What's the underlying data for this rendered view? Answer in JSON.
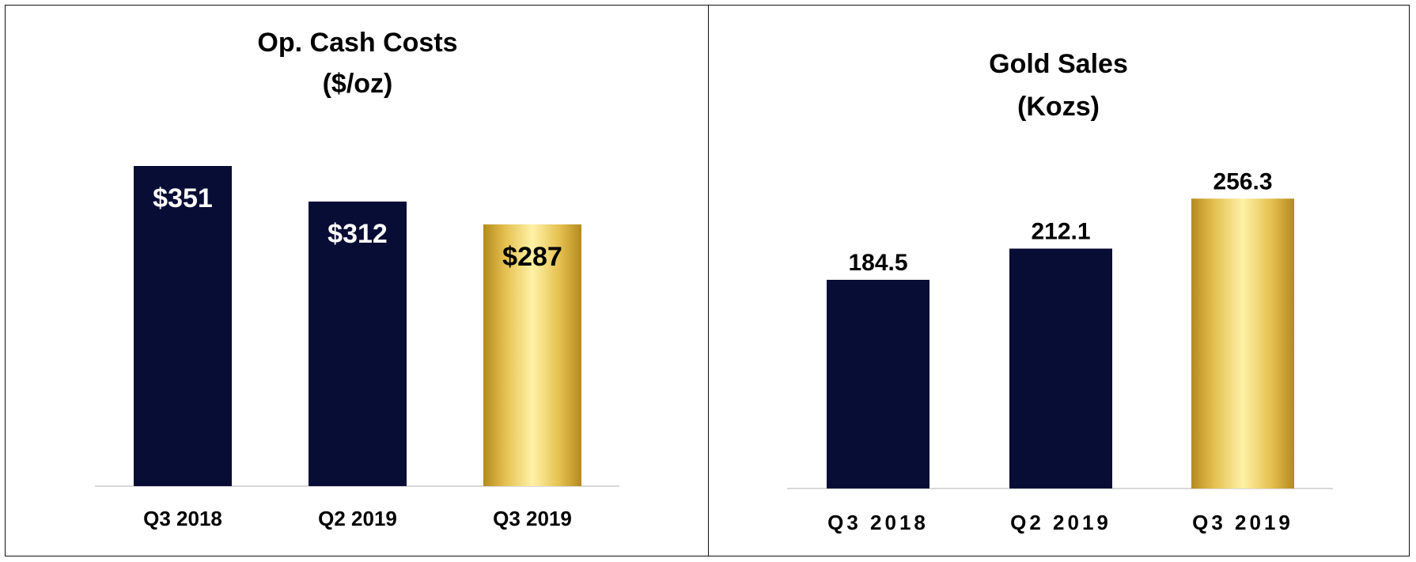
{
  "colors": {
    "navy": "#070d35",
    "gold_light": "#fff1a6",
    "gold_mid": "#e4c04f",
    "gold_dark": "#b38a1e",
    "baseline": "#d9d9d9"
  },
  "chart_data": [
    {
      "type": "bar",
      "title": [
        "Op. Cash Costs",
        "($/oz)"
      ],
      "categories": [
        "Q3 2018",
        "Q2 2019",
        "Q3 2019"
      ],
      "values": [
        351,
        312,
        287
      ],
      "data_labels": [
        "$351",
        "$312",
        "$287"
      ],
      "label_position": "inside",
      "bar_styles": [
        "navy",
        "navy",
        "gold"
      ],
      "ylim": [
        0,
        400
      ],
      "grid": false
    },
    {
      "type": "bar",
      "title": [
        "Gold Sales",
        "(Kozs)"
      ],
      "categories": [
        "Q3 2018",
        "Q2 2019",
        "Q3 2019"
      ],
      "values": [
        184.5,
        212.1,
        256.3
      ],
      "data_labels": [
        "184.5",
        "212.1",
        "256.3"
      ],
      "label_position": "above",
      "bar_styles": [
        "navy",
        "navy",
        "gold"
      ],
      "ylim": [
        0,
        300
      ],
      "grid": false
    }
  ]
}
